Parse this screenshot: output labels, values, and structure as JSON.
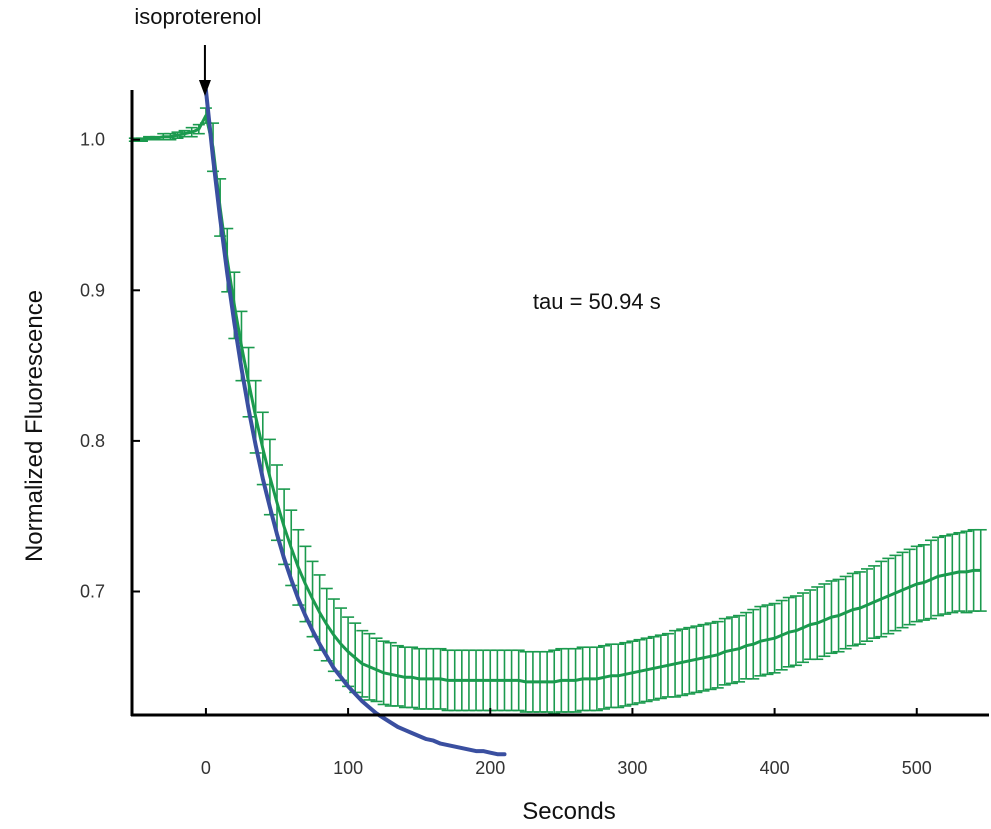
{
  "chart_data": {
    "type": "line",
    "xlabel": "Seconds",
    "ylabel": "Normalized Fluorescence",
    "xlim": [
      -52,
      548
    ],
    "ylim": [
      0.618,
      1.033
    ],
    "xticks": [
      0,
      100,
      200,
      300,
      400,
      500
    ],
    "yticks": [
      0.7,
      0.8,
      0.9,
      1.0
    ],
    "xtick_labels": [
      "0",
      "100",
      "200",
      "300",
      "400",
      "500"
    ],
    "ytick_labels": [
      "0.7",
      "0.8",
      "0.9",
      "1.0"
    ],
    "grid": false,
    "annotations": {
      "stimulus": {
        "text": "isoproterenol",
        "x": 0
      },
      "fit_label": {
        "text": "tau = 50.94 s",
        "x": 230,
        "y": 0.893
      }
    },
    "colors": {
      "data": "#1b9a4e",
      "fit": "#3a4fa0",
      "axis": "#000000"
    },
    "series": [
      {
        "style": "line-with-error-bars",
        "color": "#1b9a4e",
        "x": [
          -50,
          -45,
          -40,
          -35,
          -30,
          -25,
          -20,
          -15,
          -10,
          -5,
          0,
          5,
          10,
          15,
          20,
          25,
          30,
          35,
          40,
          45,
          50,
          55,
          60,
          65,
          70,
          75,
          80,
          85,
          90,
          95,
          100,
          105,
          110,
          115,
          120,
          125,
          130,
          135,
          140,
          145,
          150,
          155,
          160,
          165,
          170,
          175,
          180,
          185,
          190,
          195,
          200,
          205,
          210,
          215,
          220,
          225,
          230,
          235,
          240,
          245,
          250,
          255,
          260,
          265,
          270,
          275,
          280,
          285,
          290,
          295,
          300,
          305,
          310,
          315,
          320,
          325,
          330,
          335,
          340,
          345,
          350,
          355,
          360,
          365,
          370,
          375,
          380,
          385,
          390,
          395,
          400,
          405,
          410,
          415,
          420,
          425,
          430,
          435,
          440,
          445,
          450,
          455,
          460,
          465,
          470,
          475,
          480,
          485,
          490,
          495,
          500,
          505,
          510,
          515,
          520,
          525,
          530,
          535,
          540,
          545
        ],
        "y": [
          1.0,
          1.0,
          1.001,
          1.001,
          1.002,
          1.002,
          1.003,
          1.004,
          1.005,
          1.007,
          1.016,
          0.995,
          0.955,
          0.92,
          0.89,
          0.863,
          0.839,
          0.816,
          0.795,
          0.776,
          0.759,
          0.743,
          0.729,
          0.716,
          0.705,
          0.695,
          0.686,
          0.678,
          0.671,
          0.665,
          0.66,
          0.656,
          0.652,
          0.65,
          0.648,
          0.646,
          0.645,
          0.644,
          0.643,
          0.643,
          0.642,
          0.642,
          0.642,
          0.642,
          0.641,
          0.641,
          0.641,
          0.641,
          0.641,
          0.641,
          0.641,
          0.641,
          0.641,
          0.641,
          0.641,
          0.64,
          0.64,
          0.64,
          0.64,
          0.64,
          0.641,
          0.641,
          0.641,
          0.642,
          0.642,
          0.642,
          0.643,
          0.644,
          0.644,
          0.645,
          0.646,
          0.647,
          0.648,
          0.649,
          0.65,
          0.651,
          0.652,
          0.653,
          0.654,
          0.655,
          0.656,
          0.657,
          0.658,
          0.66,
          0.661,
          0.662,
          0.664,
          0.665,
          0.667,
          0.668,
          0.669,
          0.671,
          0.673,
          0.674,
          0.676,
          0.678,
          0.679,
          0.681,
          0.683,
          0.684,
          0.686,
          0.688,
          0.689,
          0.691,
          0.693,
          0.695,
          0.697,
          0.699,
          0.701,
          0.703,
          0.705,
          0.706,
          0.708,
          0.71,
          0.711,
          0.712,
          0.713,
          0.713,
          0.714,
          0.714
        ],
        "error": [
          0.001,
          0.001,
          0.001,
          0.001,
          0.002,
          0.002,
          0.002,
          0.002,
          0.003,
          0.003,
          0.005,
          0.016,
          0.019,
          0.021,
          0.022,
          0.023,
          0.023,
          0.024,
          0.024,
          0.025,
          0.025,
          0.025,
          0.025,
          0.025,
          0.025,
          0.025,
          0.025,
          0.024,
          0.024,
          0.024,
          0.023,
          0.023,
          0.022,
          0.022,
          0.021,
          0.021,
          0.021,
          0.02,
          0.02,
          0.02,
          0.02,
          0.02,
          0.02,
          0.02,
          0.02,
          0.02,
          0.02,
          0.02,
          0.02,
          0.02,
          0.02,
          0.02,
          0.02,
          0.02,
          0.02,
          0.02,
          0.02,
          0.02,
          0.02,
          0.021,
          0.021,
          0.021,
          0.021,
          0.021,
          0.021,
          0.021,
          0.021,
          0.021,
          0.021,
          0.021,
          0.021,
          0.021,
          0.021,
          0.021,
          0.021,
          0.021,
          0.022,
          0.022,
          0.022,
          0.022,
          0.022,
          0.022,
          0.022,
          0.022,
          0.022,
          0.022,
          0.022,
          0.023,
          0.023,
          0.023,
          0.023,
          0.023,
          0.023,
          0.023,
          0.023,
          0.023,
          0.024,
          0.024,
          0.024,
          0.024,
          0.024,
          0.024,
          0.024,
          0.024,
          0.024,
          0.025,
          0.025,
          0.025,
          0.025,
          0.025,
          0.025,
          0.025,
          0.026,
          0.026,
          0.026,
          0.026,
          0.026,
          0.027,
          0.027,
          0.027
        ]
      },
      {
        "style": "exponential-fit",
        "color": "#3a4fa0",
        "x": [
          0,
          5,
          10,
          15,
          20,
          25,
          30,
          35,
          40,
          45,
          50,
          55,
          60,
          65,
          70,
          75,
          80,
          85,
          90,
          95,
          100,
          105,
          110,
          115,
          120,
          125,
          130,
          135,
          140,
          145,
          150,
          155,
          160,
          165,
          170,
          175,
          180,
          185,
          190,
          195,
          200,
          205,
          210
        ],
        "y": [
          1.033,
          0.988,
          0.948,
          0.911,
          0.878,
          0.848,
          0.821,
          0.797,
          0.775,
          0.756,
          0.738,
          0.722,
          0.708,
          0.695,
          0.684,
          0.674,
          0.665,
          0.657,
          0.649,
          0.643,
          0.637,
          0.632,
          0.627,
          0.623,
          0.619,
          0.616,
          0.613,
          0.61,
          0.608,
          0.606,
          0.604,
          0.602,
          0.601,
          0.599,
          0.598,
          0.597,
          0.596,
          0.595,
          0.594,
          0.594,
          0.593,
          0.592,
          0.592
        ]
      }
    ]
  }
}
